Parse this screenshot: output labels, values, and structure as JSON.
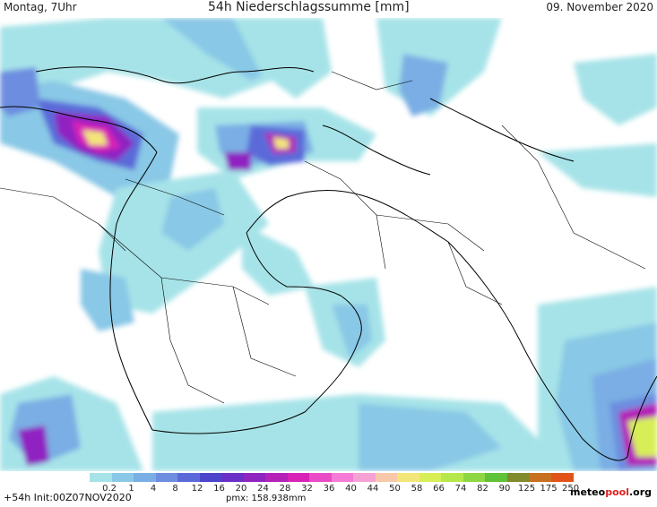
{
  "header": {
    "left": "Montag, 7Uhr",
    "center": "54h Niederschlagssumme [mm]",
    "right": "09. November 2020"
  },
  "legend": {
    "ticks": [
      "0.2",
      "1",
      "4",
      "8",
      "12",
      "16",
      "20",
      "24",
      "28",
      "32",
      "36",
      "40",
      "44",
      "50",
      "58",
      "66",
      "74",
      "82",
      "90",
      "125",
      "175",
      "250"
    ],
    "colors": [
      "#a6e3e8",
      "#89c8e6",
      "#7aaee4",
      "#6d8de0",
      "#5c6ad9",
      "#4d44cc",
      "#6a2fc6",
      "#8f24c1",
      "#b422b8",
      "#d824b6",
      "#ea4cc7",
      "#f57bd6",
      "#f6a2d5",
      "#f7c8a9",
      "#f3e678",
      "#d8ee56",
      "#b6e84b",
      "#8ed642",
      "#5fc237",
      "#7f8b2c",
      "#c7701d",
      "#e2531a"
    ]
  },
  "footer": {
    "init": "+54h Init:00Z07NOV2020",
    "pmx": "pmx: 158.938mm",
    "logo_main": "meteo",
    "logo_accent": "pool",
    "logo_tail": ".org"
  }
}
